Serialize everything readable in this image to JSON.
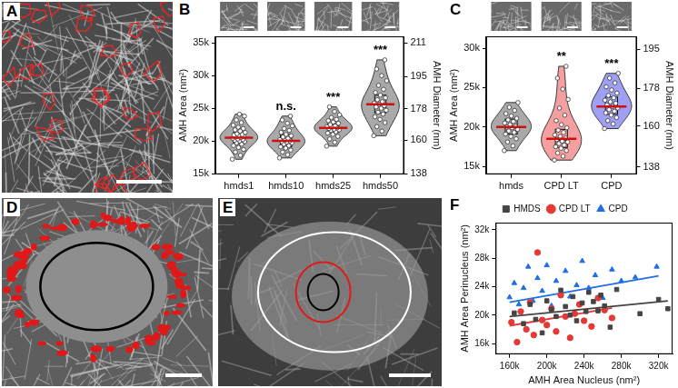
{
  "image_panels": [
    "A",
    "D",
    "E"
  ],
  "chart_data": [
    {
      "panel": "B",
      "type": "violin",
      "categories": [
        "hmds1",
        "hmds10",
        "hmds25",
        "hmds50"
      ],
      "color": "#8c8c8c",
      "values": [
        [
          17200,
          17800,
          18300,
          18700,
          19000,
          19300,
          19500,
          19700,
          19900,
          20000,
          20100,
          20200,
          20300,
          20400,
          20500,
          20600,
          20700,
          20800,
          20900,
          21000,
          21100,
          21300,
          21500,
          21700,
          21900,
          22100,
          22400,
          22800,
          23200,
          23800,
          24100
        ],
        [
          17400,
          17900,
          18300,
          18600,
          18900,
          19100,
          19300,
          19500,
          19700,
          19800,
          19900,
          20000,
          20100,
          20200,
          20400,
          20600,
          20800,
          21000,
          21300,
          21600,
          21900,
          22300,
          22700,
          23200,
          23800
        ],
        [
          19200,
          19800,
          20300,
          20700,
          21000,
          21200,
          21400,
          21600,
          21700,
          21800,
          21900,
          22000,
          22100,
          22200,
          22300,
          22500,
          22700,
          22900,
          23100,
          23300,
          23600,
          24000,
          24500,
          25200
        ],
        [
          20800,
          21500,
          22200,
          22800,
          23300,
          23700,
          24100,
          24400,
          24700,
          25000,
          25200,
          25400,
          25600,
          25800,
          26000,
          26300,
          26600,
          27000,
          27400,
          27900,
          28500,
          29200,
          30000,
          31000,
          32400
        ]
      ],
      "mean": [
        20500,
        20000,
        22000,
        25600
      ],
      "box": [
        [
          19600,
          20400,
          21300
        ],
        [
          19100,
          19900,
          21000
        ],
        [
          21300,
          21900,
          22600
        ],
        [
          24300,
          25500,
          27000
        ]
      ],
      "annotations": [
        null,
        "n.s.",
        "***",
        "***"
      ],
      "y_label": "AMH Area (nm²)",
      "y2_label": "AMH Diameter (nm)",
      "ylim": [
        14900,
        36000
      ],
      "yticks": [
        {
          "value": 15000,
          "label": "15k"
        },
        {
          "value": 20000,
          "label": "20k"
        },
        {
          "value": 25000,
          "label": "25k"
        },
        {
          "value": 30000,
          "label": "30k"
        },
        {
          "value": 35000,
          "label": "35k"
        }
      ],
      "y2lim": [
        137.7,
        214.1
      ],
      "y2ticks": [
        138,
        160,
        178,
        195,
        211
      ],
      "grid": false
    },
    {
      "panel": "C",
      "type": "violin",
      "categories": [
        "hmds",
        "CPD LT",
        "CPD"
      ],
      "colors": [
        "#8c8c8c",
        "#f08080",
        "#7f7fef"
      ],
      "values": [
        [
          17000,
          17600,
          18100,
          18500,
          18800,
          19100,
          19300,
          19500,
          19700,
          19900,
          20000,
          20100,
          20300,
          20500,
          20700,
          20900,
          21100,
          21400,
          21700,
          22100,
          22500,
          23100
        ],
        [
          15800,
          16300,
          16700,
          17000,
          17300,
          17500,
          17700,
          17900,
          18100,
          18200,
          18400,
          18600,
          18800,
          19000,
          19300,
          19600,
          19900,
          20300,
          20800,
          21500,
          22400,
          23500,
          24800,
          26200,
          27700
        ],
        [
          19800,
          20400,
          20800,
          21200,
          21500,
          21800,
          22000,
          22200,
          22400,
          22600,
          22800,
          23000,
          23200,
          23400,
          23700,
          24000,
          24300,
          24700,
          25100,
          25600,
          26200,
          26800
        ]
      ],
      "mean": [
        20000,
        18500,
        22600
      ],
      "box": [
        [
          19100,
          19950,
          21000
        ],
        [
          17400,
          18300,
          19700
        ],
        [
          21600,
          22700,
          23800
        ]
      ],
      "annotations": [
        null,
        "**",
        "***"
      ],
      "y_label": "AMH Area (nm²)",
      "y2_label": "AMH Diameter (nm)",
      "ylim": [
        14000,
        31500
      ],
      "yticks": [
        {
          "value": 15000,
          "label": "15k"
        },
        {
          "value": 20000,
          "label": "20k"
        },
        {
          "value": 25000,
          "label": "25k"
        },
        {
          "value": 30000,
          "label": "30k"
        }
      ],
      "y2lim": [
        133.5,
        200.3
      ],
      "y2ticks": [
        138,
        160,
        178,
        195
      ],
      "grid": false
    },
    {
      "panel": "F",
      "type": "scatter",
      "x_label": "AMH Area Nucleus (nm²)",
      "y_label": "AMH Area Perinucleus (nm²)",
      "xlim": [
        145000,
        335000
      ],
      "xticks": [
        {
          "value": 160000,
          "label": "160k"
        },
        {
          "value": 200000,
          "label": "200k"
        },
        {
          "value": 240000,
          "label": "240k"
        },
        {
          "value": 280000,
          "label": "280k"
        },
        {
          "value": 320000,
          "label": "320k"
        }
      ],
      "ylim": [
        14500,
        33000
      ],
      "yticks": [
        {
          "value": 16000,
          "label": "16k"
        },
        {
          "value": 20000,
          "label": "20k"
        },
        {
          "value": 24000,
          "label": "24k"
        },
        {
          "value": 28000,
          "label": "28k"
        },
        {
          "value": 32000,
          "label": "32k"
        }
      ],
      "legend": "top",
      "grid": false,
      "series": [
        {
          "name": "HMDS",
          "color": "#444444",
          "marker": "square",
          "values": [
            [
              165000,
              20300
            ],
            [
              175000,
              18800
            ],
            [
              182000,
              21500
            ],
            [
              188000,
              19400
            ],
            [
              195000,
              17500
            ],
            [
              200000,
              22000
            ],
            [
              205000,
              20800
            ],
            [
              210000,
              19800
            ],
            [
              215000,
              23500
            ],
            [
              220000,
              21200
            ],
            [
              225000,
              20000
            ],
            [
              228000,
              22600
            ],
            [
              232000,
              19200
            ],
            [
              238000,
              21700
            ],
            [
              242000,
              20500
            ],
            [
              245000,
              23200
            ],
            [
              250000,
              21900
            ],
            [
              255000,
              20600
            ],
            [
              258000,
              22800
            ],
            [
              262000,
              21300
            ],
            [
              268000,
              18300
            ],
            [
              275000,
              23600
            ],
            [
              300000,
              20200
            ],
            [
              320000,
              22200
            ],
            [
              330000,
              20900
            ]
          ],
          "fit": [
            [
              160000,
              19800
            ],
            [
              330000,
              22000
            ]
          ]
        },
        {
          "name": "CPD LT",
          "color": "#e53935",
          "marker": "circle",
          "values": [
            [
              162000,
              19000
            ],
            [
              168000,
              16200
            ],
            [
              172000,
              20500
            ],
            [
              178000,
              18000
            ],
            [
              182000,
              21800
            ],
            [
              186000,
              17200
            ],
            [
              190000,
              28800
            ],
            [
              195000,
              19300
            ],
            [
              200000,
              18600
            ],
            [
              205000,
              20900
            ],
            [
              210000,
              17700
            ],
            [
              215000,
              22800
            ],
            [
              220000,
              19800
            ],
            [
              225000,
              16800
            ],
            [
              230000,
              20200
            ],
            [
              235000,
              21500
            ],
            [
              240000,
              19200
            ],
            [
              248000,
              18400
            ],
            [
              255000,
              22400
            ],
            [
              262000,
              20700
            ],
            [
              270000,
              19600
            ]
          ],
          "fit": [
            [
              160000,
              18500
            ],
            [
              270000,
              21000
            ]
          ]
        },
        {
          "name": "CPD",
          "color": "#1e6fe5",
          "marker": "triangle",
          "values": [
            [
              160000,
              22500
            ],
            [
              165000,
              24500
            ],
            [
              170000,
              21500
            ],
            [
              175000,
              23800
            ],
            [
              180000,
              26800
            ],
            [
              185000,
              22000
            ],
            [
              190000,
              25200
            ],
            [
              195000,
              23400
            ],
            [
              200000,
              27000
            ],
            [
              205000,
              21300
            ],
            [
              210000,
              24800
            ],
            [
              215000,
              23000
            ],
            [
              220000,
              26200
            ],
            [
              225000,
              22600
            ],
            [
              232000,
              24200
            ],
            [
              238000,
              27600
            ],
            [
              245000,
              23800
            ],
            [
              252000,
              25600
            ],
            [
              260000,
              22400
            ],
            [
              270000,
              26400
            ],
            [
              280000,
              24800
            ],
            [
              295000,
              25300
            ],
            [
              318000,
              26800
            ]
          ],
          "fit": [
            [
              160000,
              21800
            ],
            [
              320000,
              25500
            ]
          ]
        }
      ]
    }
  ]
}
